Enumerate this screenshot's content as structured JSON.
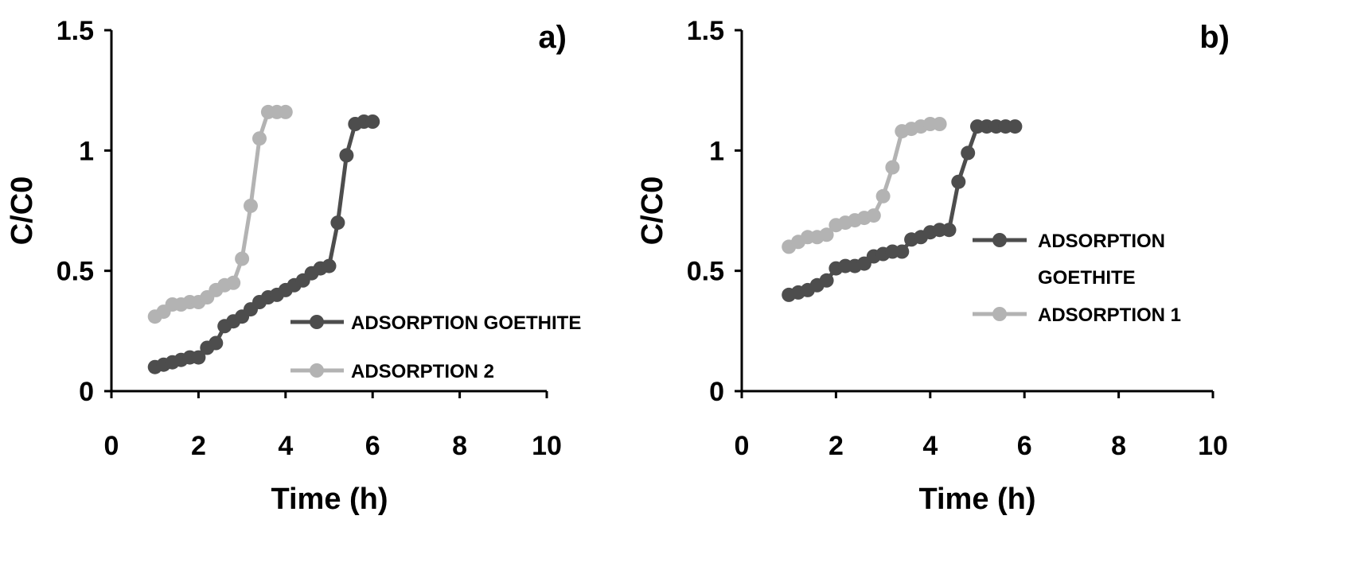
{
  "colors": {
    "dark": "#4d4d4d",
    "light": "#b3b3b3",
    "axis": "#000000"
  },
  "chart_data": [
    {
      "type": "line",
      "panel_label": "a)",
      "xlabel": "Time (h)",
      "ylabel": "C/C0",
      "xlim": [
        0,
        10
      ],
      "ylim": [
        0,
        1.5
      ],
      "xticks": [
        "0",
        "2",
        "4",
        "6",
        "8",
        "10"
      ],
      "yticks": [
        "0",
        "0.5",
        "1",
        "1.5"
      ],
      "grid": false,
      "legend_position": "right",
      "series": [
        {
          "name": "ADSORPTION GOETHITE",
          "color": "dark",
          "x": [
            1.0,
            1.2,
            1.4,
            1.6,
            1.8,
            2.0,
            2.2,
            2.4,
            2.6,
            2.8,
            3.0,
            3.2,
            3.4,
            3.6,
            3.8,
            4.0,
            4.2,
            4.4,
            4.6,
            4.8,
            5.0,
            5.2,
            5.4,
            5.6,
            5.8,
            6.0
          ],
          "y": [
            0.1,
            0.11,
            0.12,
            0.13,
            0.14,
            0.14,
            0.18,
            0.2,
            0.27,
            0.29,
            0.31,
            0.34,
            0.37,
            0.39,
            0.4,
            0.42,
            0.44,
            0.46,
            0.49,
            0.51,
            0.52,
            0.7,
            0.98,
            1.11,
            1.12,
            1.12
          ]
        },
        {
          "name": "ADSORPTION 2",
          "color": "light",
          "x": [
            1.0,
            1.2,
            1.4,
            1.6,
            1.8,
            2.0,
            2.2,
            2.4,
            2.6,
            2.8,
            3.0,
            3.2,
            3.4,
            3.6,
            3.8,
            4.0
          ],
          "y": [
            0.31,
            0.33,
            0.36,
            0.36,
            0.37,
            0.37,
            0.39,
            0.42,
            0.44,
            0.45,
            0.55,
            0.77,
            1.05,
            1.16,
            1.16,
            1.16
          ]
        }
      ]
    },
    {
      "type": "line",
      "panel_label": "b)",
      "xlabel": "Time (h)",
      "ylabel": "C/C0",
      "xlim": [
        0,
        10
      ],
      "ylim": [
        0,
        1.5
      ],
      "xticks": [
        "0",
        "2",
        "4",
        "6",
        "8",
        "10"
      ],
      "yticks": [
        "0",
        "0.5",
        "1",
        "1.5"
      ],
      "grid": false,
      "legend_position": "right",
      "series": [
        {
          "name": "ADSORPTION GOETHITE",
          "legend_lines": [
            "ADSORPTION",
            "GOETHITE"
          ],
          "color": "dark",
          "x": [
            1.0,
            1.2,
            1.4,
            1.6,
            1.8,
            2.0,
            2.2,
            2.4,
            2.6,
            2.8,
            3.0,
            3.2,
            3.4,
            3.6,
            3.8,
            4.0,
            4.2,
            4.4,
            4.6,
            4.8,
            5.0,
            5.2,
            5.4,
            5.6,
            5.8
          ],
          "y": [
            0.4,
            0.41,
            0.42,
            0.44,
            0.46,
            0.51,
            0.52,
            0.52,
            0.53,
            0.56,
            0.57,
            0.58,
            0.58,
            0.63,
            0.64,
            0.66,
            0.67,
            0.67,
            0.87,
            0.99,
            1.1,
            1.1,
            1.1,
            1.1,
            1.1
          ]
        },
        {
          "name": "ADSORPTION 1",
          "color": "light",
          "x": [
            1.0,
            1.2,
            1.4,
            1.6,
            1.8,
            2.0,
            2.2,
            2.4,
            2.6,
            2.8,
            3.0,
            3.2,
            3.4,
            3.6,
            3.8,
            4.0,
            4.2
          ],
          "y": [
            0.6,
            0.62,
            0.64,
            0.64,
            0.65,
            0.69,
            0.7,
            0.71,
            0.72,
            0.73,
            0.81,
            0.93,
            1.08,
            1.09,
            1.1,
            1.11,
            1.11
          ]
        }
      ]
    }
  ]
}
